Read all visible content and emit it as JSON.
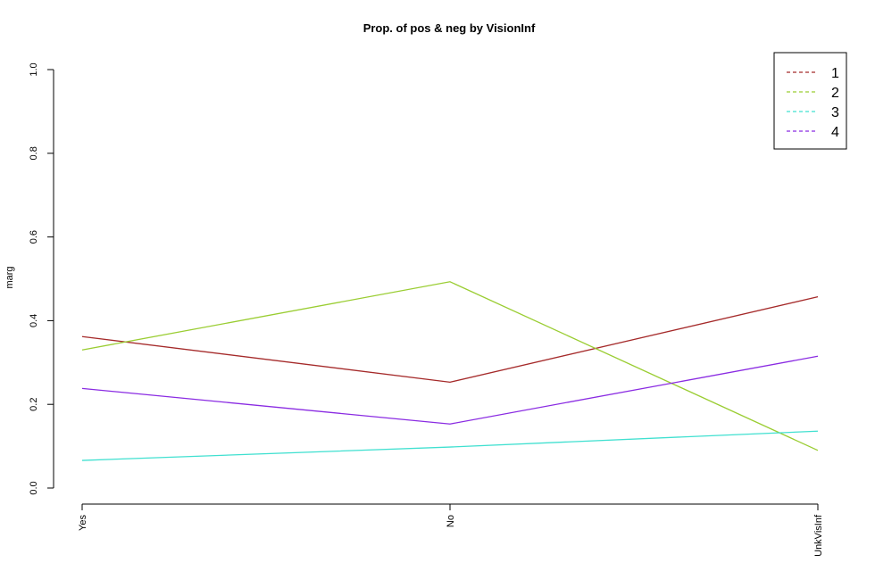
{
  "chart_data": {
    "type": "line",
    "title": "Prop. of pos & neg by VisionInf",
    "xlabel": "",
    "ylabel": "marg",
    "categories": [
      "Yes",
      "No",
      "UnkVisInf"
    ],
    "ylim": [
      0,
      1
    ],
    "yticks": [
      "0.0",
      "0.2",
      "0.4",
      "0.6",
      "0.8",
      "1.0"
    ],
    "grid": false,
    "legend_position": "top-right",
    "series": [
      {
        "name": "1",
        "color": "#a52a2a",
        "values": [
          0.362,
          0.253,
          0.457
        ]
      },
      {
        "name": "2",
        "color": "#9acd32",
        "values": [
          0.33,
          0.493,
          0.09
        ]
      },
      {
        "name": "3",
        "color": "#40e0d0",
        "values": [
          0.066,
          0.098,
          0.136
        ]
      },
      {
        "name": "4",
        "color": "#8a2be2",
        "values": [
          0.238,
          0.153,
          0.315
        ]
      }
    ]
  }
}
